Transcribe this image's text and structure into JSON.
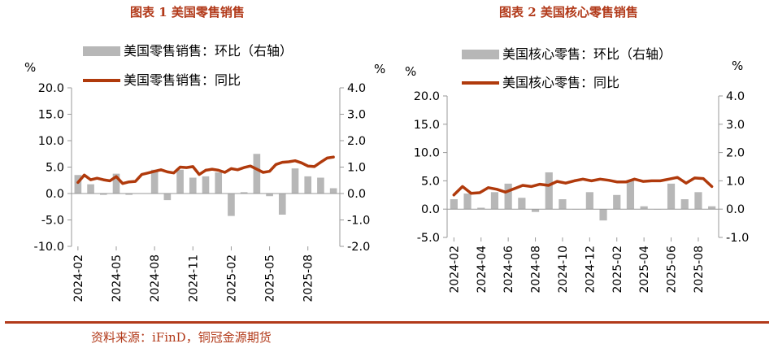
{
  "figure": {
    "source": "资料来源：iFinD，铜冠金源期货"
  },
  "chart_data": [
    {
      "type": "bar+line",
      "title": "图表 1  美国零售销售",
      "left_unit": "%",
      "right_unit": "%",
      "left_ylim": [
        -10.0,
        20.0
      ],
      "left_ticks": [
        "-10.0",
        "-5.0",
        "0.0",
        "5.0",
        "10.0",
        "15.0",
        "20.0"
      ],
      "right_ylim": [
        -2.0,
        4.0
      ],
      "right_ticks": [
        "-2.0",
        "-1.0",
        "0.0",
        "1.0",
        "2.0",
        "3.0",
        "4.0"
      ],
      "x_tick_labels": [
        "2024-02",
        "2024-05",
        "2024-08",
        "2024-11",
        "2025-02",
        "2025-05",
        "2025-08"
      ],
      "x_tick_indices": [
        0,
        3,
        6,
        9,
        12,
        15,
        18
      ],
      "series": [
        {
          "name": "美国零售销售：环比（右轴）",
          "kind": "bar",
          "axis": "right",
          "color": "#b7b7b7",
          "values": [
            0.7,
            0.35,
            -0.05,
            0.75,
            -0.05,
            0.0,
            0.9,
            -0.25,
            0.9,
            0.6,
            0.65,
            0.8,
            -0.85,
            0.05,
            1.5,
            -0.1,
            -0.8,
            0.95,
            0.65,
            0.6,
            0.2
          ]
        },
        {
          "name": "美国零售销售：同比",
          "kind": "line",
          "axis": "left",
          "color": "#b03a0c",
          "values": [
            2.1,
            3.5,
            2.6,
            2.9,
            2.6,
            2.4,
            3.2,
            1.9,
            2.2,
            2.3,
            3.6,
            3.9,
            4.2,
            4.5,
            4.1,
            3.9,
            5.0,
            4.9,
            5.1,
            3.6,
            4.4,
            4.6,
            4.4,
            4.0,
            4.7,
            4.5,
            4.9,
            5.2,
            4.6,
            4.0,
            4.2,
            5.5,
            5.9,
            6.0,
            6.2,
            5.8,
            5.2,
            5.1,
            5.9,
            6.7,
            6.9
          ]
        }
      ]
    },
    {
      "type": "bar+line",
      "title": "图表 2  美国核心零售销售",
      "left_unit": "%",
      "right_unit": "%",
      "left_ylim": [
        -5.0,
        20.0
      ],
      "left_ticks": [
        "-5.0",
        "0.0",
        "5.0",
        "10.0",
        "15.0",
        "20.0"
      ],
      "right_ylim": [
        -1.0,
        4.0
      ],
      "right_ticks": [
        "-1.0",
        "0.0",
        "1.0",
        "2.0",
        "3.0",
        "4.0"
      ],
      "x_tick_labels": [
        "2024-02",
        "2024-04",
        "2024-06",
        "2024-08",
        "2024-10",
        "2024-12",
        "2025-02",
        "2025-04",
        "2025-06",
        "2025-08"
      ],
      "x_tick_indices": [
        0,
        2,
        4,
        6,
        8,
        10,
        12,
        14,
        16,
        18
      ],
      "series": [
        {
          "name": "美国核心零售：环比（右轴）",
          "kind": "bar",
          "axis": "right",
          "color": "#b7b7b7",
          "values": [
            0.35,
            0.55,
            0.05,
            0.6,
            0.9,
            0.4,
            -0.1,
            1.3,
            0.35,
            0.0,
            0.6,
            -0.4,
            0.5,
            1.0,
            0.1,
            0.0,
            0.9,
            0.35,
            0.6,
            0.1
          ]
        },
        {
          "name": "美国核心零售：同比",
          "kind": "line",
          "axis": "left",
          "color": "#b03a0c",
          "values": [
            2.5,
            4.0,
            2.8,
            2.9,
            3.8,
            3.5,
            3.0,
            3.6,
            4.2,
            4.0,
            4.4,
            4.2,
            4.9,
            4.6,
            5.0,
            5.3,
            5.0,
            5.3,
            5.1,
            4.8,
            4.8,
            5.3,
            4.9,
            5.0,
            5.0,
            5.3,
            5.6,
            4.6,
            5.5,
            5.4,
            4.0
          ]
        }
      ]
    }
  ]
}
